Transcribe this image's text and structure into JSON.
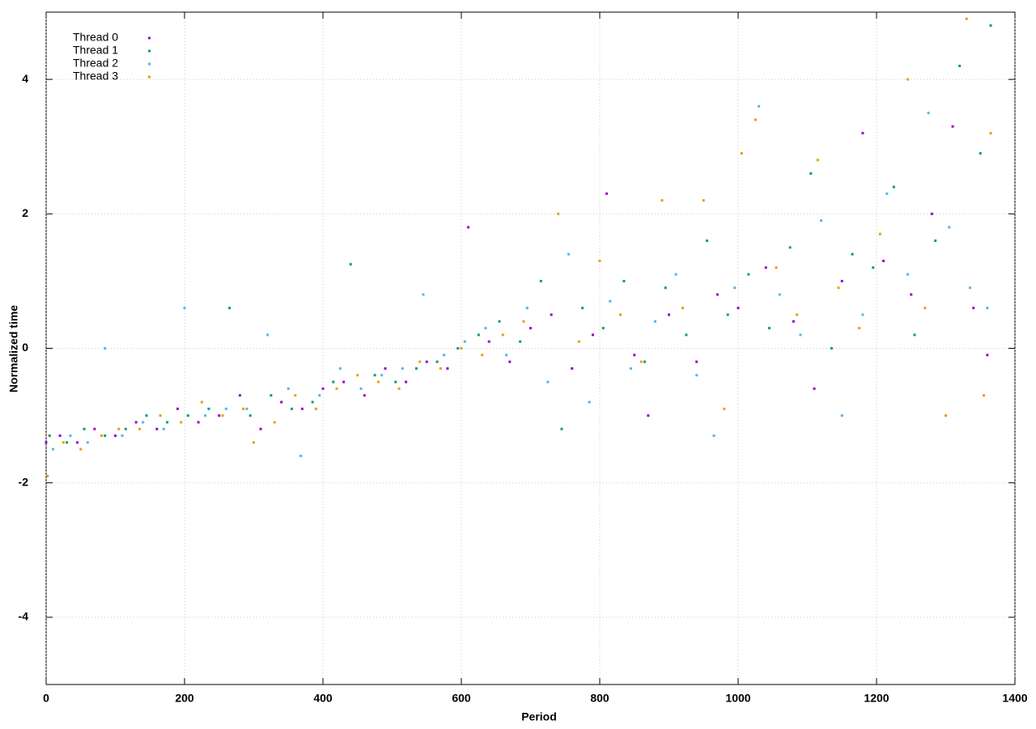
{
  "chart_data": {
    "type": "scatter",
    "x_label": "Period",
    "y_label": "Normalized time",
    "xlim": [
      0,
      1400
    ],
    "ylim": [
      -5,
      5
    ],
    "xticks": [
      0,
      200,
      400,
      600,
      800,
      1000,
      1200,
      1400
    ],
    "yticks": [
      -4,
      -2,
      0,
      2,
      4
    ],
    "grid": true,
    "legend": "upper-left",
    "series": [
      {
        "name": "Thread 0",
        "color": "#9400d3",
        "x": [
          0,
          20,
          45,
          70,
          100,
          130,
          160,
          190,
          220,
          250,
          280,
          310,
          340,
          370,
          400,
          430,
          460,
          490,
          520,
          550,
          580,
          610,
          640,
          670,
          700,
          730,
          760,
          790,
          810,
          850,
          870,
          900,
          940,
          970,
          1000,
          1040,
          1080,
          1110,
          1150,
          1180,
          1210,
          1250,
          1280,
          1310,
          1340,
          1360
        ],
        "values": [
          -1.4,
          -1.3,
          -1.4,
          -1.2,
          -1.3,
          -1.1,
          -1.2,
          -0.9,
          -1.1,
          -1.0,
          -0.7,
          -1.2,
          -0.8,
          -0.9,
          -0.6,
          -0.5,
          -0.7,
          -0.3,
          -0.5,
          -0.2,
          -0.3,
          1.8,
          0.1,
          -0.2,
          0.3,
          0.5,
          -0.3,
          0.2,
          2.3,
          -0.1,
          -1.0,
          0.5,
          -0.2,
          0.8,
          0.6,
          1.2,
          0.4,
          -0.6,
          1.0,
          3.2,
          1.3,
          0.8,
          2.0,
          3.3,
          0.6,
          -0.1
        ]
      },
      {
        "name": "Thread 1",
        "color": "#009e73",
        "x": [
          5,
          30,
          55,
          85,
          115,
          145,
          175,
          205,
          235,
          265,
          295,
          325,
          355,
          385,
          415,
          440,
          475,
          505,
          535,
          565,
          595,
          625,
          655,
          685,
          715,
          745,
          775,
          805,
          835,
          865,
          895,
          925,
          955,
          985,
          1015,
          1045,
          1075,
          1105,
          1135,
          1165,
          1195,
          1225,
          1255,
          1285,
          1320,
          1350,
          1365
        ],
        "values": [
          -1.3,
          -1.4,
          -1.2,
          -1.3,
          -1.2,
          -1.0,
          -1.1,
          -1.0,
          -0.9,
          0.6,
          -1.0,
          -0.7,
          -0.9,
          -0.8,
          -0.5,
          1.25,
          -0.4,
          -0.5,
          -0.3,
          -0.2,
          0.0,
          0.2,
          0.4,
          0.1,
          1.0,
          -1.2,
          0.6,
          0.3,
          1.0,
          -0.2,
          0.9,
          0.2,
          1.6,
          0.5,
          1.1,
          0.3,
          1.5,
          2.6,
          0.0,
          1.4,
          1.2,
          2.4,
          0.2,
          1.6,
          4.2,
          2.9,
          4.8
        ]
      },
      {
        "name": "Thread 2",
        "color": "#56b4e9",
        "x": [
          10,
          35,
          60,
          85,
          110,
          140,
          170,
          200,
          230,
          260,
          290,
          320,
          350,
          368,
          395,
          425,
          455,
          485,
          515,
          545,
          575,
          605,
          635,
          665,
          695,
          725,
          755,
          785,
          815,
          845,
          880,
          910,
          940,
          965,
          995,
          1030,
          1060,
          1090,
          1120,
          1150,
          1180,
          1215,
          1245,
          1275,
          1305,
          1335,
          1360
        ],
        "values": [
          -1.5,
          -1.3,
          -1.4,
          0.0,
          -1.3,
          -1.1,
          -1.2,
          0.6,
          -1.0,
          -0.9,
          -0.9,
          0.2,
          -0.6,
          -1.6,
          -0.7,
          -0.3,
          -0.6,
          -0.4,
          -0.3,
          0.8,
          -0.1,
          0.1,
          0.3,
          -0.1,
          0.6,
          -0.5,
          1.4,
          -0.8,
          0.7,
          -0.3,
          0.4,
          1.1,
          -0.4,
          -1.3,
          0.9,
          3.6,
          0.8,
          0.2,
          1.9,
          -1.0,
          0.5,
          2.3,
          1.1,
          3.5,
          1.8,
          0.9,
          0.6
        ]
      },
      {
        "name": "Thread 3",
        "color": "#e69f00",
        "x": [
          2,
          25,
          50,
          80,
          105,
          135,
          165,
          195,
          225,
          255,
          285,
          300,
          330,
          360,
          390,
          420,
          450,
          480,
          510,
          540,
          570,
          600,
          630,
          660,
          690,
          740,
          770,
          800,
          830,
          860,
          890,
          920,
          950,
          980,
          1005,
          1025,
          1055,
          1085,
          1115,
          1145,
          1175,
          1205,
          1245,
          1270,
          1300,
          1330,
          1355,
          1365
        ],
        "values": [
          -1.9,
          -1.4,
          -1.5,
          -1.3,
          -1.2,
          -1.2,
          -1.0,
          -1.1,
          -0.8,
          -1.0,
          -0.9,
          -1.4,
          -1.1,
          -0.7,
          -0.9,
          -0.6,
          -0.4,
          -0.5,
          -0.6,
          -0.2,
          -0.3,
          0.0,
          -0.1,
          0.2,
          0.4,
          2.0,
          0.1,
          1.3,
          0.5,
          -0.2,
          2.2,
          0.6,
          2.2,
          -0.9,
          2.9,
          3.4,
          1.2,
          0.5,
          2.8,
          0.9,
          0.3,
          1.7,
          4.0,
          0.6,
          -1.0,
          4.9,
          -0.7,
          3.2
        ]
      }
    ]
  }
}
